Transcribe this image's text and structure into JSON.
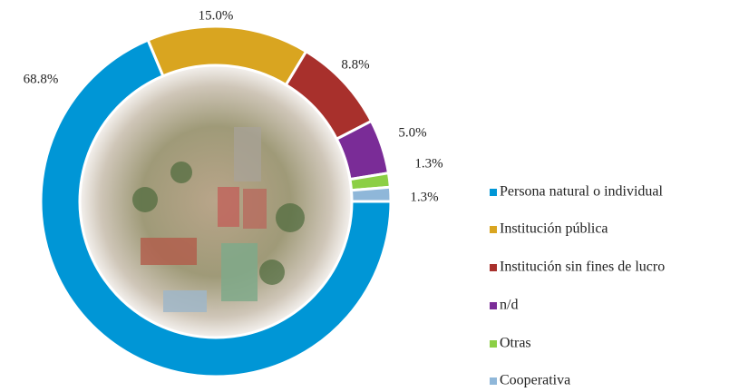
{
  "chart_data": {
    "type": "donut",
    "categories": [
      "Persona natural o individual",
      "Institución pública",
      "Institución sin fines de lucro",
      "n/d",
      "Otras",
      "Cooperativa"
    ],
    "values": [
      68.8,
      15.0,
      8.8,
      5.0,
      1.3,
      1.3
    ],
    "value_labels": [
      "68.8%",
      "15.0%",
      "8.8%",
      "5.0%",
      "1.3%",
      "1.3%"
    ],
    "colors": [
      "#0096d6",
      "#d9a520",
      "#a8302c",
      "#7a2c97",
      "#8ccf45",
      "#8fb7d9"
    ]
  }
}
